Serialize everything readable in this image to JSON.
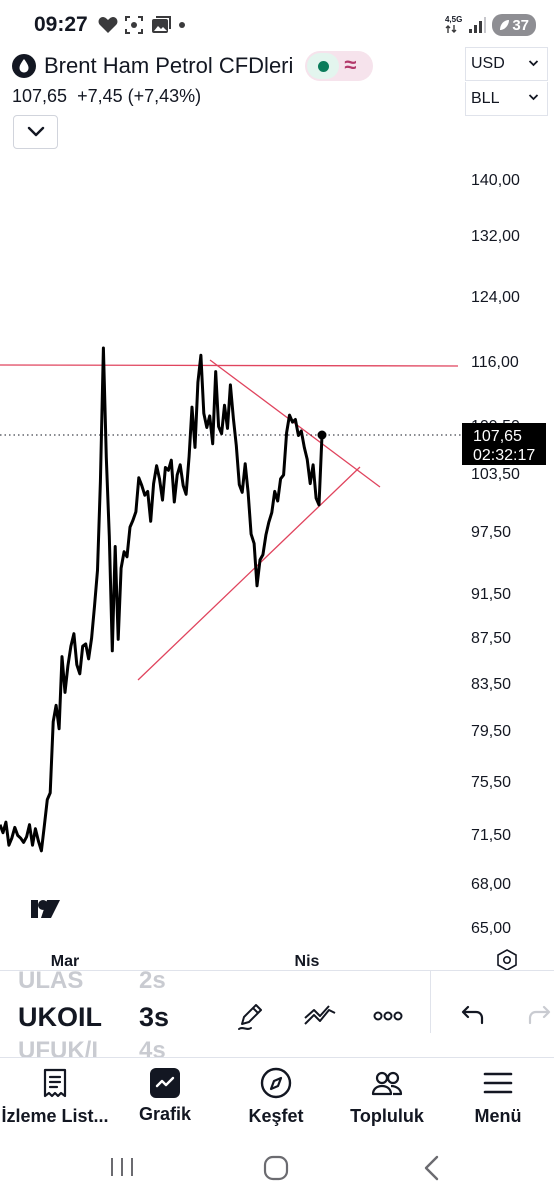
{
  "status_bar": {
    "time": "09:27",
    "network": "4,5G",
    "battery": "37"
  },
  "header": {
    "symbol_title": "Brent Ham Petrol CFDleri",
    "price": "107,65",
    "change": "+7,45",
    "change_pct": "(+7,43%)",
    "currency": "USD",
    "unit": "BLL",
    "market_status_color": "#0b7c5b"
  },
  "chart": {
    "last_price_label": "107,65",
    "countdown": "02:32:17",
    "obscured_tick": "109,50",
    "y_ticks": [
      "140,00",
      "132,00",
      "124,00",
      "116,00",
      "103,50",
      "97,50",
      "91,50",
      "87,50",
      "83,50",
      "79,50",
      "75,50",
      "71,50",
      "68,00",
      "65,00"
    ],
    "x_ticks": [
      "Mar",
      "Nis"
    ],
    "line_color": "#000000",
    "trendline_color": "#e0445e",
    "logo": "TV"
  },
  "chart_data": {
    "type": "line",
    "title": "",
    "xlabel": "",
    "ylabel": "",
    "ylim": [
      63,
      146
    ],
    "x_ticks": [
      "Mar",
      "Nis"
    ],
    "series": [
      {
        "values": [
          72.2,
          71.6,
          72.4,
          70.7,
          71.2,
          72,
          71.4,
          71.2,
          70.9,
          71.3,
          72.2,
          70.7,
          71.9,
          71,
          70.3,
          72.1,
          74.1,
          74.6,
          80.2,
          81.6,
          79.6,
          85.8,
          82.7,
          85,
          86.7,
          87.8,
          85.1,
          84.3,
          86.7,
          86.9,
          85.6,
          87.4,
          90.3,
          93.7,
          102.6,
          117.6,
          105.2,
          97,
          86.3,
          96,
          87.3,
          93.9,
          95.5,
          95,
          97.9,
          98.6,
          99.5,
          103,
          102.2,
          101.2,
          101.6,
          98.5,
          102.4,
          104.3,
          102.9,
          100.7,
          104.1,
          103.8,
          104.9,
          100.5,
          103.3,
          104.4,
          102.2,
          101.3,
          105.3,
          110.8,
          106.3,
          113.6,
          116.7,
          110.1,
          108.5,
          109.8,
          106.7,
          114.8,
          108.6,
          107.8,
          111,
          108.4,
          113.3,
          109.5,
          106.5,
          102.3,
          101.5,
          104.5,
          101.5,
          97.2,
          96.3,
          92.2,
          94.7,
          95.2,
          97.1,
          98.4,
          99.4,
          101.6,
          100.6,
          102.9,
          103.3,
          107.9,
          109.9,
          109.1,
          109.4,
          107.6,
          108.1,
          106.3,
          105,
          102.4,
          104.4,
          100.9,
          100.2,
          107.65
        ]
      }
    ]
  },
  "tool_row": {
    "symbol_prev": "ULAS",
    "symbol_current": "UKOIL",
    "symbol_next": "UFUK/I",
    "interval_prev": "2s",
    "interval_current": "3s",
    "interval_next": "4s"
  },
  "bottom_nav": {
    "items": [
      {
        "label": "İzleme List..."
      },
      {
        "label": "Grafik"
      },
      {
        "label": "Keşfet"
      },
      {
        "label": "Topluluk"
      },
      {
        "label": "Menü"
      }
    ]
  }
}
